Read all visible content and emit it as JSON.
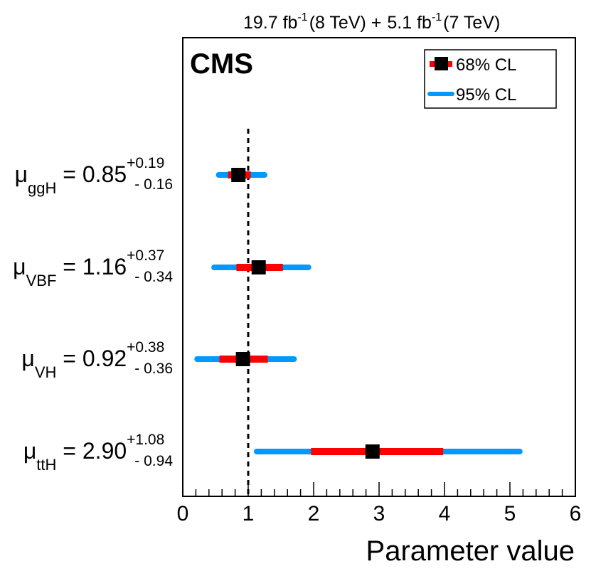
{
  "chart_data": {
    "type": "scatter",
    "subtype": "horizontal error-bar summary",
    "experiment_label": "CMS",
    "luminosity": {
      "lumi1": "19.7 fb",
      "lumi1_exp": "-1",
      "energy1": "(8 TeV) +",
      "lumi2": "5.1 fb",
      "lumi2_exp": "-1",
      "energy2": "(7 TeV)"
    },
    "xlabel": "Parameter value",
    "xlim": [
      0,
      6
    ],
    "xticks": [
      "0",
      "1",
      "2",
      "3",
      "4",
      "5",
      "6"
    ],
    "reference_line": 1,
    "legend": {
      "position": "top-right",
      "entries": [
        {
          "label": "68% CL",
          "color": "#ff0000",
          "marker": "#000000"
        },
        {
          "label": "95% CL",
          "color": "#0099ff"
        }
      ]
    },
    "series": [
      {
        "param": "μ",
        "sub": "ggH",
        "eq": "= 0.85",
        "up": "+0.19",
        "down": "- 0.16",
        "value": 0.85,
        "cl68": [
          0.69,
          1.04
        ],
        "cl95": [
          0.55,
          1.25
        ]
      },
      {
        "param": "μ",
        "sub": "VBF",
        "eq": "= 1.16",
        "up": "+0.37",
        "down": "- 0.34",
        "value": 1.16,
        "cl68": [
          0.82,
          1.53
        ],
        "cl95": [
          0.48,
          1.92
        ]
      },
      {
        "param": "μ",
        "sub": "VH",
        "eq": "= 0.92",
        "up": "+0.38",
        "down": "- 0.36",
        "value": 0.92,
        "cl68": [
          0.56,
          1.3
        ],
        "cl95": [
          0.22,
          1.7
        ]
      },
      {
        "param": "μ",
        "sub": "ttH",
        "eq": "= 2.90",
        "up": "+1.08",
        "down": "- 0.94",
        "value": 2.9,
        "cl68": [
          1.96,
          3.98
        ],
        "cl95": [
          1.13,
          5.15
        ]
      }
    ]
  }
}
